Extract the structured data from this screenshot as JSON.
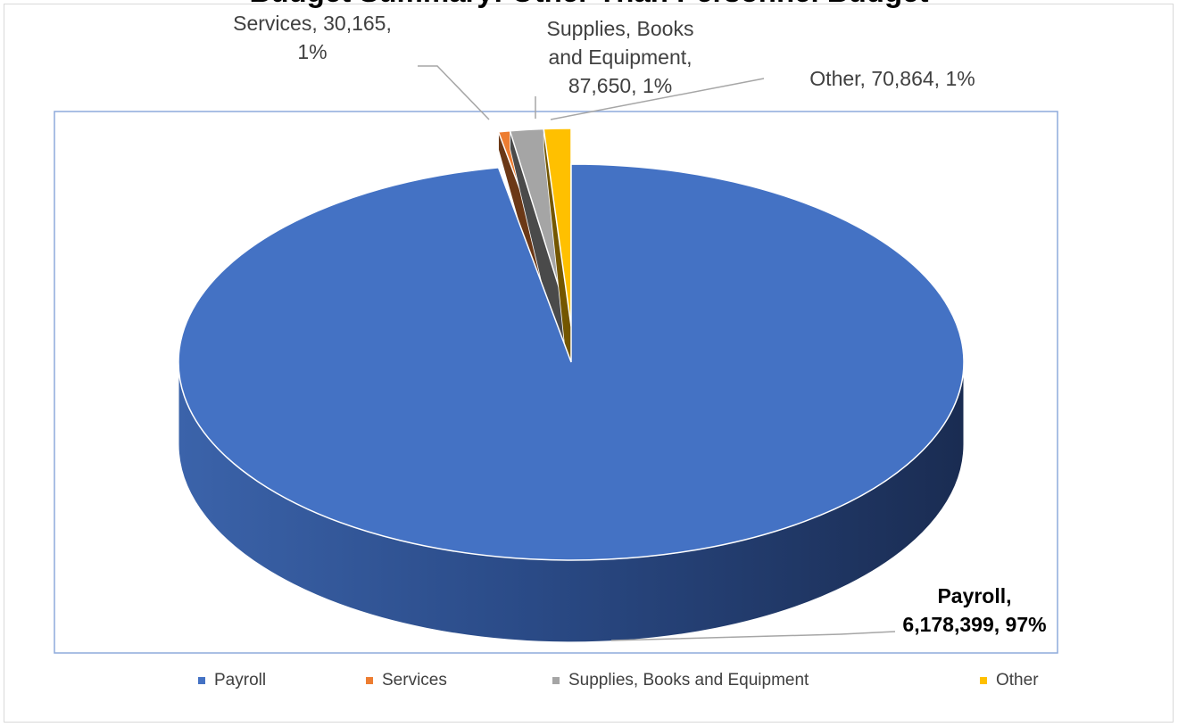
{
  "chart_data": {
    "type": "pie",
    "title": "Budget Summary: Other Than Personnel Budget",
    "categories": [
      "Payroll",
      "Services",
      "Supplies, Books and Equipment",
      "Other"
    ],
    "values": [
      6178399,
      30165,
      87650,
      70864
    ],
    "percents": [
      "97%",
      "1%",
      "1%",
      "1%"
    ],
    "colors": [
      "#4472C4",
      "#ED7D31",
      "#A5A5A5",
      "#FFC000"
    ],
    "data_labels": [
      [
        "Payroll,",
        "6,178,399, 97%"
      ],
      [
        "Services, 30,165,",
        "1%"
      ],
      [
        "Supplies, Books",
        "and Equipment,",
        "87,650, 1%"
      ],
      [
        "Other, 70,864, 1%"
      ]
    ],
    "legend_position": "bottom",
    "style": "3d-exploded"
  }
}
